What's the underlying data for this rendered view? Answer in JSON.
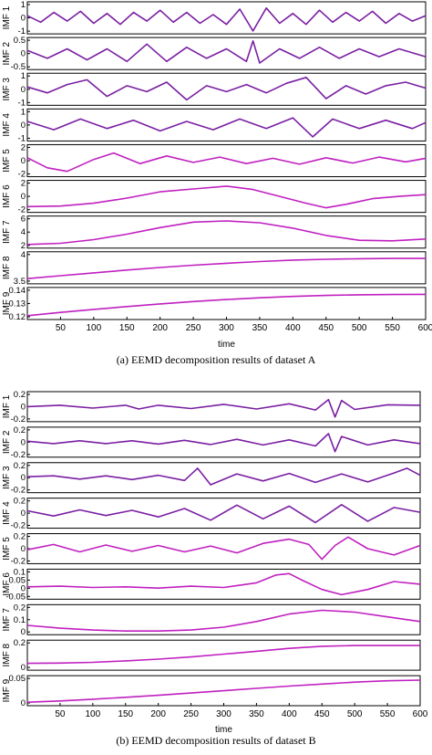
{
  "caption_a": "(a) EEMD decomposition results of dataset A",
  "caption_b": "(b) EEMD decomposition results of dataset B",
  "chart_data": [
    {
      "type": "line",
      "caption": "(a) EEMD decomposition results of dataset A",
      "xlabel": "time",
      "xlim": [
        0,
        600
      ],
      "xticks": [
        "50",
        "100",
        "150",
        "200",
        "250",
        "300",
        "350",
        "400",
        "450",
        "500",
        "550",
        "600"
      ],
      "series": [
        {
          "name": "IMF 1",
          "color": "#7a1fa2",
          "yticks": [
            "1",
            "0",
            "-1"
          ],
          "ylim": [
            -1.3,
            1.3
          ],
          "x": [
            0,
            20,
            40,
            60,
            80,
            100,
            120,
            140,
            160,
            180,
            200,
            220,
            240,
            260,
            280,
            300,
            320,
            340,
            360,
            380,
            400,
            420,
            440,
            460,
            480,
            500,
            520,
            540,
            560,
            580,
            600
          ],
          "y": [
            0.2,
            -0.4,
            0.5,
            -0.3,
            0.6,
            -0.5,
            0.4,
            -0.6,
            0.5,
            -0.3,
            0.7,
            -0.4,
            0.5,
            -0.5,
            0.3,
            -0.6,
            0.8,
            -1.2,
            0.9,
            -0.5,
            0.4,
            -0.6,
            0.7,
            -0.4,
            0.5,
            -0.3,
            0.6,
            -0.5,
            0.4,
            -0.3,
            0.2
          ]
        },
        {
          "name": "IMF 2",
          "color": "#7a1fa2",
          "yticks": [
            "0.5",
            "0",
            "-0.5"
          ],
          "ylim": [
            -0.9,
            0.9
          ],
          "x": [
            0,
            30,
            60,
            90,
            120,
            150,
            180,
            210,
            240,
            270,
            300,
            330,
            340,
            350,
            380,
            410,
            440,
            470,
            500,
            530,
            560,
            600
          ],
          "y": [
            0.2,
            -0.3,
            0.3,
            -0.4,
            0.3,
            -0.5,
            0.6,
            -0.5,
            0.4,
            -0.3,
            0.3,
            -0.5,
            0.8,
            -0.6,
            0.3,
            -0.3,
            0.4,
            -0.3,
            0.3,
            -0.2,
            0.3,
            -0.2
          ]
        },
        {
          "name": "IMF 3",
          "color": "#7a1fa2",
          "yticks": [
            "1",
            "0",
            "-1"
          ],
          "ylim": [
            -1.2,
            1.2
          ],
          "x": [
            0,
            30,
            60,
            90,
            120,
            150,
            180,
            210,
            240,
            270,
            300,
            330,
            360,
            390,
            420,
            450,
            480,
            510,
            540,
            570,
            600
          ],
          "y": [
            0.2,
            -0.3,
            0.4,
            0.8,
            -0.6,
            0.3,
            -0.2,
            0.6,
            -0.9,
            0.3,
            -0.2,
            0.4,
            -0.3,
            0.5,
            1.0,
            -0.8,
            0.3,
            -0.4,
            0.3,
            0.6,
            0.1
          ]
        },
        {
          "name": "IMF 4",
          "color": "#7a1fa2",
          "yticks": [
            "1",
            "0",
            "-1"
          ],
          "ylim": [
            -1.2,
            1.2
          ],
          "x": [
            0,
            40,
            80,
            120,
            160,
            200,
            240,
            280,
            320,
            360,
            400,
            430,
            460,
            500,
            540,
            580,
            600
          ],
          "y": [
            0.3,
            -0.4,
            0.5,
            -0.3,
            0.4,
            -0.5,
            0.3,
            -0.4,
            0.5,
            -0.3,
            0.6,
            -1.0,
            0.5,
            -0.3,
            0.4,
            -0.3,
            0.2
          ]
        },
        {
          "name": "IMF 5",
          "color": "#c020c0",
          "yticks": [
            "2",
            "0",
            "-2"
          ],
          "ylim": [
            -2.4,
            2.4
          ],
          "x": [
            0,
            30,
            60,
            100,
            130,
            170,
            210,
            250,
            290,
            330,
            370,
            410,
            450,
            490,
            530,
            570,
            600
          ],
          "y": [
            0.5,
            -1.2,
            -1.8,
            0.2,
            1.3,
            -0.5,
            0.8,
            -0.3,
            0.6,
            -0.5,
            0.4,
            -0.6,
            0.5,
            -0.4,
            0.6,
            -0.2,
            0.4
          ]
        },
        {
          "name": "IMF 6",
          "color": "#c020c0",
          "yticks": [
            "2",
            "0",
            "-2"
          ],
          "ylim": [
            -2.5,
            2.5
          ],
          "x": [
            0,
            50,
            100,
            150,
            200,
            250,
            300,
            340,
            380,
            420,
            450,
            480,
            520,
            560,
            600
          ],
          "y": [
            -1.8,
            -1.7,
            -1.2,
            -0.3,
            0.8,
            1.3,
            1.8,
            1.2,
            0.0,
            -1.2,
            -2.0,
            -1.4,
            -0.4,
            0.0,
            0.3
          ]
        },
        {
          "name": "IMF 7",
          "color": "#c020c0",
          "yticks": [
            "6",
            "4",
            "2"
          ],
          "ylim": [
            1.8,
            6.5
          ],
          "x": [
            0,
            50,
            100,
            150,
            200,
            250,
            300,
            350,
            400,
            450,
            500,
            550,
            600
          ],
          "y": [
            2.1,
            2.3,
            2.9,
            3.8,
            4.9,
            5.8,
            6.0,
            5.7,
            4.8,
            3.6,
            2.8,
            2.7,
            3.0
          ]
        },
        {
          "name": "IMF 8",
          "color": "#c020c0",
          "yticks": [
            "4",
            "3.5"
          ],
          "ylim": [
            3.3,
            4.3
          ],
          "x": [
            0,
            50,
            100,
            150,
            200,
            250,
            300,
            350,
            400,
            450,
            500,
            550,
            600
          ],
          "y": [
            3.42,
            3.52,
            3.62,
            3.72,
            3.81,
            3.89,
            3.96,
            4.02,
            4.07,
            4.1,
            4.12,
            4.13,
            4.13
          ]
        },
        {
          "name": "IMF 9",
          "color": "#c020c0",
          "yticks": [
            "0.14",
            "0.13",
            "0.12"
          ],
          "ylim": [
            0.118,
            0.146
          ],
          "x": [
            0,
            50,
            100,
            150,
            200,
            250,
            300,
            350,
            400,
            450,
            500,
            550,
            600
          ],
          "y": [
            0.12,
            0.1232,
            0.1262,
            0.129,
            0.1316,
            0.1339,
            0.1359,
            0.1376,
            0.139,
            0.14,
            0.1406,
            0.1409,
            0.141
          ]
        }
      ]
    },
    {
      "type": "line",
      "caption": "(b) EEMD decomposition results of dataset B",
      "xlabel": "time",
      "xlim": [
        0,
        600
      ],
      "xticks": [
        "50",
        "100",
        "150",
        "200",
        "250",
        "300",
        "350",
        "400",
        "450",
        "500",
        "550",
        "600"
      ],
      "series": [
        {
          "name": "IMF 1",
          "color": "#7a1fa2",
          "yticks": [
            "0.2",
            "0",
            "-0.2"
          ],
          "ylim": [
            -0.28,
            0.28
          ],
          "x": [
            0,
            50,
            100,
            150,
            170,
            200,
            250,
            300,
            350,
            400,
            440,
            460,
            470,
            480,
            500,
            550,
            600
          ],
          "y": [
            0.0,
            0.03,
            -0.03,
            0.03,
            -0.05,
            0.03,
            -0.04,
            0.05,
            -0.05,
            0.06,
            -0.07,
            0.15,
            -0.22,
            0.13,
            -0.06,
            0.04,
            0.03
          ]
        },
        {
          "name": "IMF 2",
          "color": "#7a1fa2",
          "yticks": [
            "0.2",
            "0",
            "-0.2"
          ],
          "ylim": [
            -0.28,
            0.28
          ],
          "x": [
            0,
            40,
            80,
            120,
            160,
            200,
            240,
            280,
            320,
            360,
            400,
            440,
            460,
            470,
            480,
            520,
            560,
            600
          ],
          "y": [
            0.02,
            -0.03,
            0.03,
            -0.03,
            0.03,
            -0.04,
            0.04,
            -0.05,
            0.06,
            -0.06,
            0.05,
            -0.08,
            0.18,
            -0.2,
            0.12,
            -0.06,
            0.05,
            -0.03
          ]
        },
        {
          "name": "IMF 3",
          "color": "#7a1fa2",
          "yticks": [
            "0.2",
            "0",
            "-0.2"
          ],
          "ylim": [
            -0.28,
            0.28
          ],
          "x": [
            0,
            40,
            80,
            120,
            160,
            200,
            240,
            260,
            280,
            320,
            360,
            400,
            440,
            480,
            520,
            560,
            580,
            600
          ],
          "y": [
            0.02,
            0.04,
            -0.03,
            0.04,
            -0.04,
            0.05,
            -0.06,
            0.2,
            -0.15,
            0.08,
            -0.07,
            0.09,
            -0.1,
            0.08,
            -0.09,
            0.1,
            0.2,
            0.05
          ]
        },
        {
          "name": "IMF 4",
          "color": "#7a1fa2",
          "yticks": [
            "0.2",
            "0",
            "-0.2"
          ],
          "ylim": [
            -0.28,
            0.28
          ],
          "x": [
            0,
            40,
            80,
            120,
            160,
            200,
            240,
            280,
            320,
            360,
            400,
            440,
            480,
            520,
            560,
            600
          ],
          "y": [
            0.05,
            -0.06,
            0.07,
            -0.05,
            0.06,
            -0.08,
            0.1,
            -0.15,
            0.17,
            -0.12,
            0.15,
            -0.2,
            0.18,
            -0.17,
            0.12,
            0.02
          ]
        },
        {
          "name": "IMF 5",
          "color": "#c020c0",
          "yticks": [
            "0.2",
            "0",
            "-0.2"
          ],
          "ylim": [
            -0.25,
            0.25
          ],
          "x": [
            0,
            40,
            80,
            120,
            160,
            200,
            240,
            280,
            320,
            360,
            400,
            430,
            450,
            470,
            490,
            520,
            560,
            600
          ],
          "y": [
            -0.02,
            0.08,
            -0.06,
            0.07,
            -0.05,
            0.06,
            -0.06,
            0.05,
            -0.08,
            0.1,
            0.18,
            0.08,
            -0.2,
            0.06,
            0.22,
            0.0,
            -0.12,
            0.06
          ]
        },
        {
          "name": "IMF 6",
          "color": "#c020c0",
          "yticks": [
            "0.1",
            "0.05",
            "0",
            "-0.05"
          ],
          "ylim": [
            -0.08,
            0.12
          ],
          "x": [
            0,
            50,
            100,
            150,
            200,
            250,
            300,
            350,
            380,
            400,
            420,
            450,
            480,
            520,
            560,
            600
          ],
          "y": [
            0.0,
            0.005,
            -0.005,
            0.0,
            -0.01,
            0.005,
            -0.005,
            0.03,
            0.09,
            0.1,
            0.05,
            -0.02,
            -0.06,
            -0.02,
            0.04,
            0.02
          ]
        },
        {
          "name": "IMF 7",
          "color": "#c020c0",
          "yticks": [
            "0.2",
            "0.1",
            "0"
          ],
          "ylim": [
            -0.02,
            0.26
          ],
          "x": [
            0,
            50,
            100,
            150,
            200,
            250,
            300,
            350,
            400,
            450,
            500,
            550,
            600
          ],
          "y": [
            0.06,
            0.03,
            0.01,
            0.0,
            0.0,
            0.01,
            0.04,
            0.1,
            0.18,
            0.22,
            0.2,
            0.15,
            0.1
          ]
        },
        {
          "name": "IMF 8",
          "color": "#c020c0",
          "yticks": [
            "0.2",
            "0"
          ],
          "ylim": [
            -0.05,
            0.32
          ],
          "x": [
            0,
            50,
            100,
            150,
            200,
            250,
            300,
            350,
            400,
            450,
            500,
            550,
            600
          ],
          "y": [
            0.02,
            0.025,
            0.035,
            0.055,
            0.08,
            0.11,
            0.15,
            0.19,
            0.23,
            0.26,
            0.27,
            0.27,
            0.27
          ]
        },
        {
          "name": "IMF 9",
          "color": "#c020c0",
          "yticks": [
            "0.05",
            "0"
          ],
          "ylim": [
            -0.005,
            0.075
          ],
          "x": [
            0,
            50,
            100,
            150,
            200,
            250,
            300,
            350,
            400,
            450,
            500,
            550,
            600
          ],
          "y": [
            0.0,
            0.004,
            0.009,
            0.015,
            0.021,
            0.028,
            0.035,
            0.042,
            0.049,
            0.055,
            0.061,
            0.065,
            0.067
          ]
        }
      ]
    }
  ]
}
